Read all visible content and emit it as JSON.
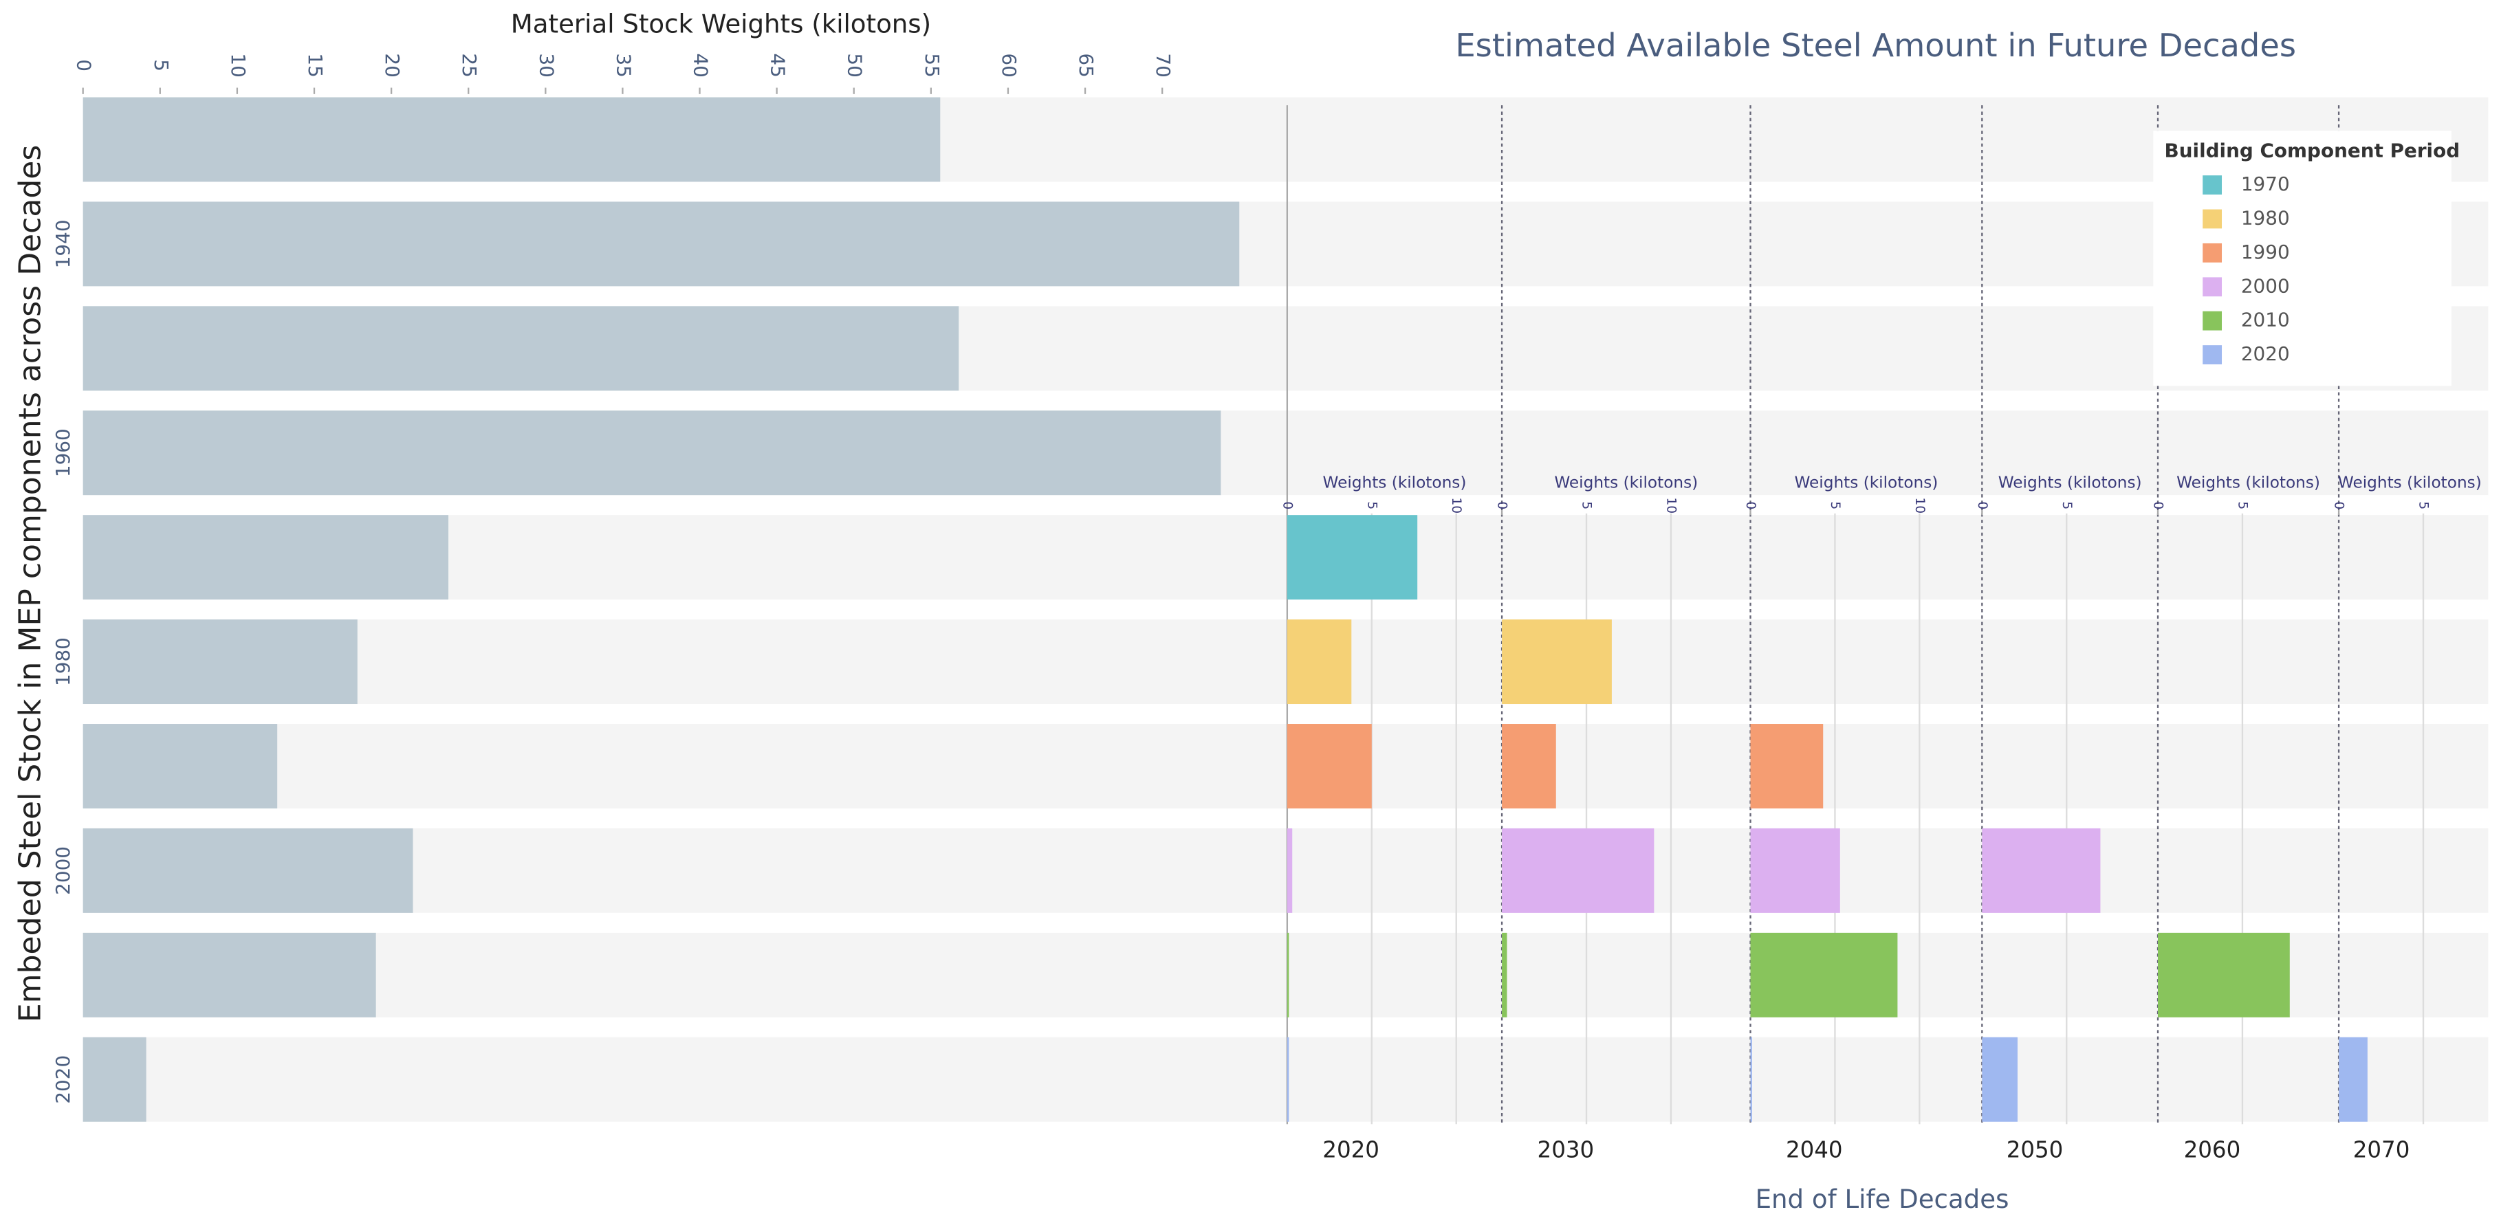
{
  "chart_data": [
    {
      "type": "hbar",
      "title": "Material Stock Weights (kilotons)",
      "y_label": "Embeded Steel Stock in MEP components across Decades",
      "categories": [
        null,
        "1940",
        null,
        "1960",
        null,
        "1980",
        null,
        "2000",
        null,
        "2020"
      ],
      "values": [
        55.6,
        75.0,
        56.8,
        73.8,
        23.7,
        17.8,
        12.6,
        21.4,
        19.0,
        4.1
      ],
      "color": "#bccad3",
      "xlim": [
        0,
        78
      ],
      "xticks": [
        0,
        5,
        10,
        15,
        20,
        25,
        30,
        35,
        40,
        45,
        50,
        55,
        60,
        65,
        70
      ]
    },
    {
      "type": "faceted-bar",
      "title": "Estimated Available Steel Amount in Future Decades",
      "x_label": "End of Life Decades",
      "facet_axis_label": "Weights (kilotons)",
      "legend_title": "Building Component Period",
      "legend": "upper right",
      "facets": [
        {
          "label": "2020",
          "xlim": [
            0,
            12.7
          ],
          "xticks": [
            0,
            5,
            10
          ]
        },
        {
          "label": "2030",
          "xlim": [
            0,
            14.7
          ],
          "xticks": [
            0,
            5,
            10
          ]
        },
        {
          "label": "2040",
          "xlim": [
            0,
            13.7
          ],
          "xticks": [
            0,
            5,
            10
          ]
        },
        {
          "label": "2050",
          "xlim": [
            0,
            10.4
          ],
          "xticks": [
            0,
            5
          ]
        },
        {
          "label": "2060",
          "xlim": [
            0,
            10.7
          ],
          "xticks": [
            0,
            5
          ]
        },
        {
          "label": "2070",
          "xlim": [
            0,
            8.4
          ],
          "xticks": [
            0,
            5
          ]
        }
      ],
      "series": [
        {
          "name": "1970",
          "color": "#67c4cc",
          "values": [
            7.7,
            null,
            null,
            null,
            null,
            null
          ]
        },
        {
          "name": "1980",
          "color": "#f5d176",
          "values": [
            3.8,
            6.5,
            null,
            null,
            null,
            null
          ]
        },
        {
          "name": "1990",
          "color": "#f59d72",
          "values": [
            5.0,
            3.2,
            4.3,
            null,
            null,
            null
          ]
        },
        {
          "name": "2000",
          "color": "#dcb0f0",
          "values": [
            0.3,
            9.0,
            5.3,
            7.0,
            null,
            null
          ]
        },
        {
          "name": "2010",
          "color": "#88c45c",
          "values": [
            0.1,
            0.3,
            8.7,
            null,
            7.8,
            null
          ]
        },
        {
          "name": "2020",
          "color": "#9fb8f0",
          "values": [
            0.1,
            null,
            0.1,
            2.1,
            null,
            1.7
          ]
        }
      ]
    }
  ]
}
